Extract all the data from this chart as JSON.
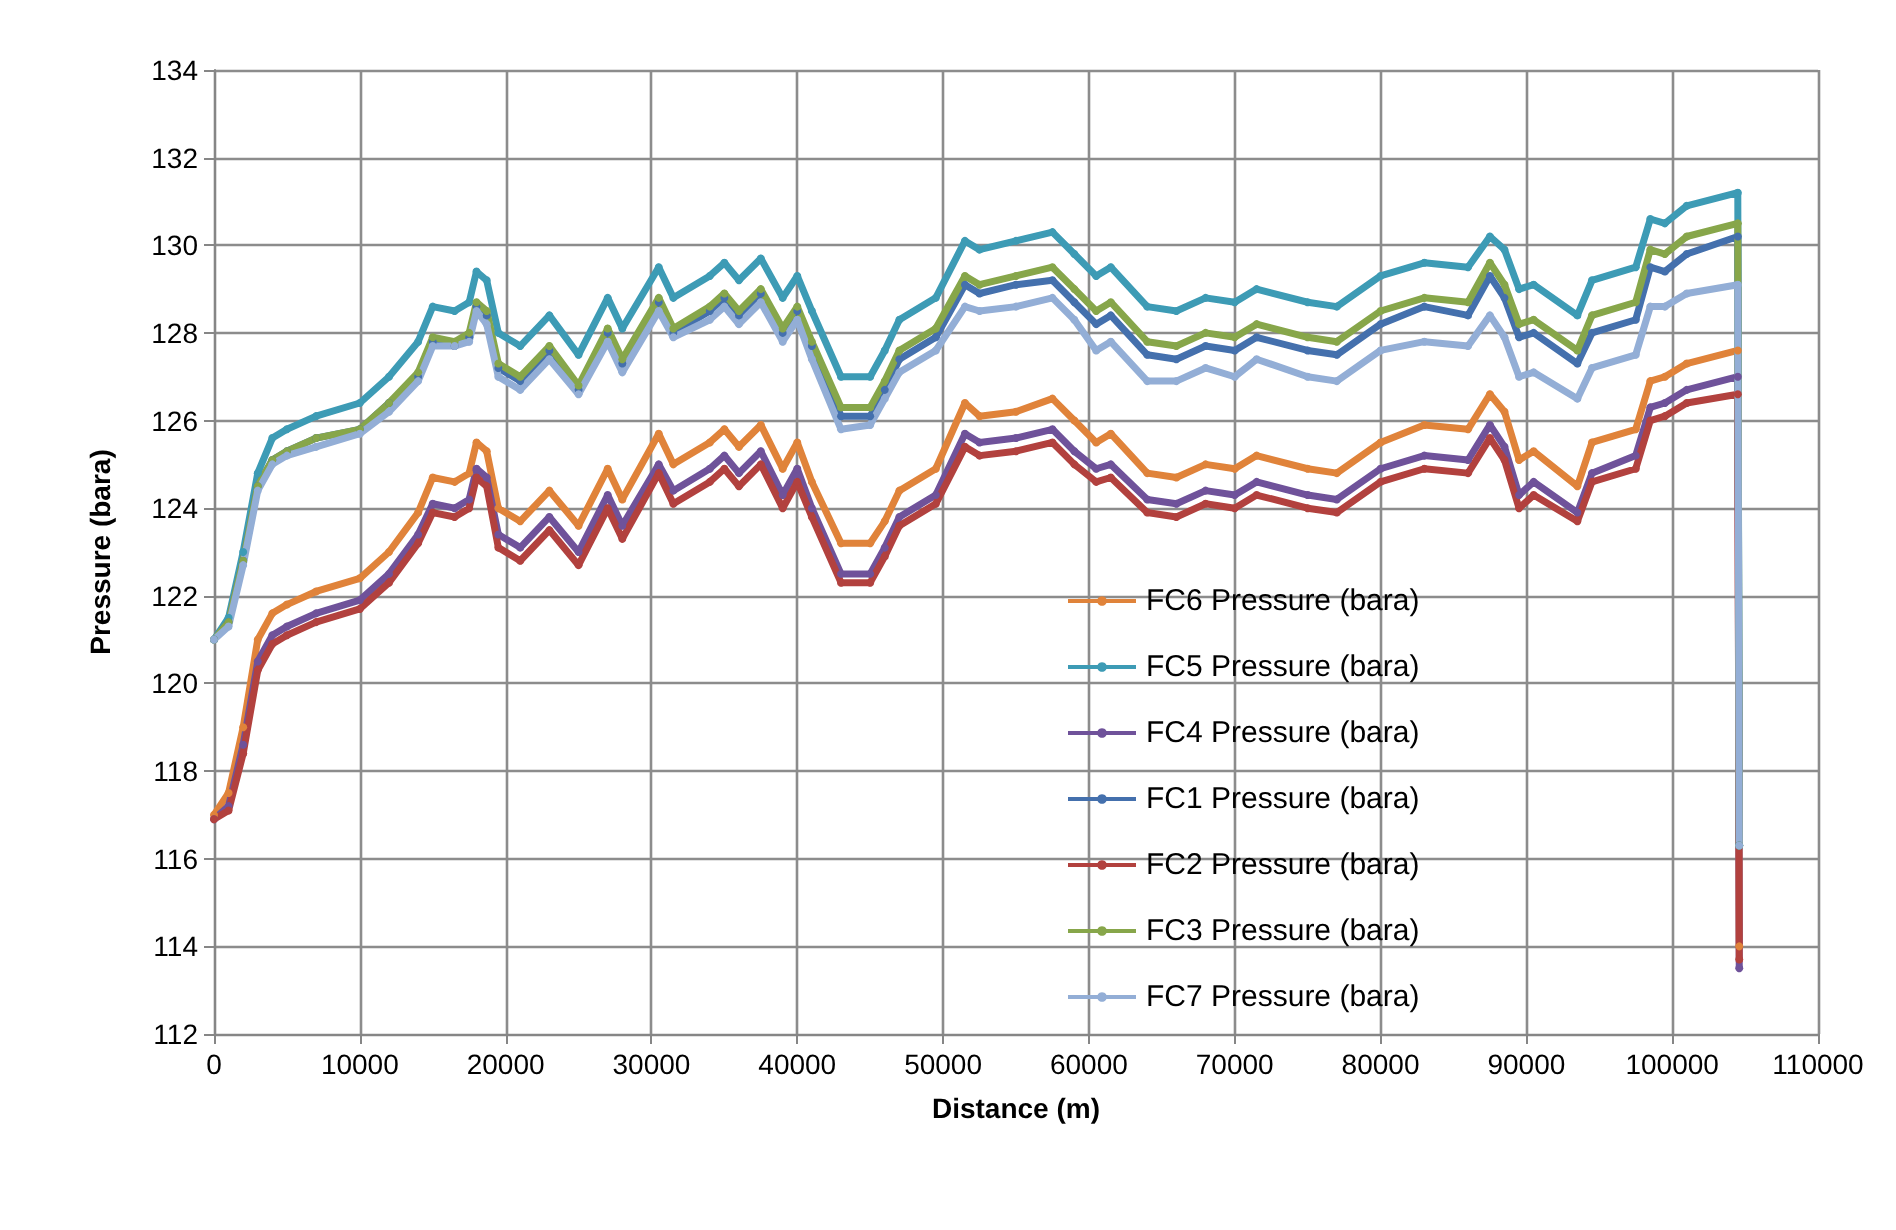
{
  "chart_data": {
    "type": "line",
    "xlabel": "Distance (m)",
    "ylabel": "Pressure (bara)",
    "x": [
      0,
      1000,
      2000,
      3000,
      4000,
      5000,
      7000,
      10000,
      12000,
      14000,
      15000,
      16500,
      17500,
      18000,
      18700,
      19500,
      21000,
      23000,
      25000,
      27000,
      28000,
      30500,
      31500,
      34000,
      35000,
      36000,
      37500,
      39000,
      40000,
      41000,
      43000,
      45000,
      46000,
      47000,
      49500,
      51500,
      52500,
      55000,
      57500,
      59000,
      60500,
      61500,
      64000,
      66000,
      68000,
      70000,
      71500,
      75000,
      77000,
      80000,
      83000,
      86000,
      87500,
      88500,
      89500,
      90500,
      93500,
      94500,
      97500,
      98500,
      99500,
      101000,
      104500,
      104600
    ],
    "xlim": [
      0,
      110000
    ],
    "xticks": [
      0,
      10000,
      20000,
      30000,
      40000,
      50000,
      60000,
      70000,
      80000,
      90000,
      100000,
      110000
    ],
    "ylim": [
      112,
      134
    ],
    "yticks": [
      112,
      114,
      116,
      118,
      120,
      122,
      124,
      126,
      128,
      130,
      132,
      134
    ],
    "grid": true,
    "legend": "right",
    "marker": "circle",
    "line_style": "solid",
    "series": [
      {
        "name": "FC6 Pressure (bara)",
        "color": "#e0833a",
        "values": [
          117.0,
          117.5,
          119.0,
          121.0,
          121.6,
          121.8,
          122.1,
          122.4,
          123.0,
          123.9,
          124.7,
          124.6,
          124.8,
          125.5,
          125.3,
          124.0,
          123.7,
          124.4,
          123.6,
          124.9,
          124.2,
          125.7,
          125.0,
          125.5,
          125.8,
          125.4,
          125.9,
          124.9,
          125.5,
          124.6,
          123.2,
          123.2,
          123.7,
          124.4,
          124.9,
          126.4,
          126.1,
          126.2,
          126.5,
          126.0,
          125.5,
          125.7,
          124.8,
          124.7,
          125.0,
          124.9,
          125.2,
          124.9,
          124.8,
          125.5,
          125.9,
          125.8,
          126.6,
          126.2,
          125.1,
          125.3,
          124.5,
          125.5,
          125.8,
          126.9,
          127.0,
          127.3,
          127.6,
          114.0
        ]
      },
      {
        "name": "FC5 Pressure (bara)",
        "color": "#3d9bb5",
        "values": [
          121.0,
          121.5,
          123.0,
          124.8,
          125.6,
          125.8,
          126.1,
          126.4,
          127.0,
          127.8,
          128.6,
          128.5,
          128.7,
          129.4,
          129.2,
          128.0,
          127.7,
          128.4,
          127.5,
          128.8,
          128.1,
          129.5,
          128.8,
          129.3,
          129.6,
          129.2,
          129.7,
          128.8,
          129.3,
          128.5,
          127.0,
          127.0,
          127.6,
          128.3,
          128.8,
          130.1,
          129.9,
          130.1,
          130.3,
          129.8,
          129.3,
          129.5,
          128.6,
          128.5,
          128.8,
          128.7,
          129.0,
          128.7,
          128.6,
          129.3,
          129.6,
          129.5,
          130.2,
          129.9,
          129.0,
          129.1,
          128.4,
          129.2,
          129.5,
          130.6,
          130.5,
          130.9,
          131.2,
          116.3
        ]
      },
      {
        "name": "FC4 Pressure (bara)",
        "color": "#6f529a",
        "values": [
          116.9,
          117.2,
          118.6,
          120.5,
          121.1,
          121.3,
          121.6,
          121.9,
          122.5,
          123.4,
          124.1,
          124.0,
          124.2,
          124.9,
          124.7,
          123.4,
          123.1,
          123.8,
          123.0,
          124.3,
          123.6,
          125.0,
          124.4,
          124.9,
          125.2,
          124.8,
          125.3,
          124.3,
          124.9,
          124.0,
          122.5,
          122.5,
          123.1,
          123.8,
          124.3,
          125.7,
          125.5,
          125.6,
          125.8,
          125.3,
          124.9,
          125.0,
          124.2,
          124.1,
          124.4,
          124.3,
          124.6,
          124.3,
          124.2,
          124.9,
          125.2,
          125.1,
          125.9,
          125.4,
          124.3,
          124.6,
          123.9,
          124.8,
          125.2,
          126.3,
          126.4,
          126.7,
          127.0,
          113.5
        ]
      },
      {
        "name": "FC1 Pressure (bara)",
        "color": "#4470ad",
        "values": [
          121.0,
          121.4,
          122.8,
          124.5,
          125.1,
          125.3,
          125.6,
          125.8,
          126.4,
          127.0,
          127.8,
          127.7,
          127.9,
          128.6,
          128.4,
          127.2,
          126.9,
          127.6,
          126.7,
          128.0,
          127.3,
          128.7,
          128.0,
          128.5,
          128.8,
          128.4,
          128.9,
          128.0,
          128.5,
          127.7,
          126.1,
          126.1,
          126.7,
          127.4,
          127.9,
          129.1,
          128.9,
          129.1,
          129.2,
          128.7,
          128.2,
          128.4,
          127.5,
          127.4,
          127.7,
          127.6,
          127.9,
          127.6,
          127.5,
          128.2,
          128.6,
          128.4,
          129.3,
          128.8,
          127.9,
          128.0,
          127.3,
          128.0,
          128.3,
          129.5,
          129.4,
          129.8,
          130.2,
          116.3
        ]
      },
      {
        "name": "FC2 Pressure (bara)",
        "color": "#b2413e",
        "values": [
          116.9,
          117.1,
          118.4,
          120.3,
          120.9,
          121.1,
          121.4,
          121.7,
          122.3,
          123.2,
          123.9,
          123.8,
          124.0,
          124.7,
          124.5,
          123.1,
          122.8,
          123.5,
          122.7,
          124.0,
          123.3,
          124.8,
          124.1,
          124.6,
          124.9,
          124.5,
          125.0,
          124.0,
          124.6,
          123.8,
          122.3,
          122.3,
          122.9,
          123.6,
          124.1,
          125.4,
          125.2,
          125.3,
          125.5,
          125.0,
          124.6,
          124.7,
          123.9,
          123.8,
          124.1,
          124.0,
          124.3,
          124.0,
          123.9,
          124.6,
          124.9,
          124.8,
          125.6,
          125.1,
          124.0,
          124.3,
          123.7,
          124.6,
          124.9,
          126.0,
          126.1,
          126.4,
          126.6,
          113.7
        ]
      },
      {
        "name": "FC3 Pressure (bara)",
        "color": "#87a64a",
        "values": [
          121.0,
          121.4,
          122.8,
          124.5,
          125.1,
          125.3,
          125.6,
          125.8,
          126.4,
          127.1,
          127.9,
          127.8,
          128.0,
          128.7,
          128.5,
          127.3,
          127.0,
          127.7,
          126.8,
          128.1,
          127.4,
          128.8,
          128.1,
          128.6,
          128.9,
          128.5,
          129.0,
          128.1,
          128.6,
          127.8,
          126.3,
          126.3,
          126.9,
          127.6,
          128.1,
          129.3,
          129.1,
          129.3,
          129.5,
          129.0,
          128.5,
          128.7,
          127.8,
          127.7,
          128.0,
          127.9,
          128.2,
          127.9,
          127.8,
          128.5,
          128.8,
          128.7,
          129.6,
          129.1,
          128.2,
          128.3,
          127.6,
          128.4,
          128.7,
          129.9,
          129.8,
          130.2,
          130.5,
          116.3
        ]
      },
      {
        "name": "FC7 Pressure (bara)",
        "color": "#93aed6",
        "values": [
          121.0,
          121.3,
          122.7,
          124.4,
          125.0,
          125.2,
          125.4,
          125.7,
          126.2,
          126.9,
          127.7,
          127.7,
          127.8,
          128.5,
          128.2,
          127.0,
          126.7,
          127.4,
          126.6,
          127.8,
          127.1,
          128.5,
          127.9,
          128.3,
          128.6,
          128.2,
          128.7,
          127.8,
          128.3,
          127.4,
          125.8,
          125.9,
          126.5,
          127.1,
          127.6,
          128.6,
          128.5,
          128.6,
          128.8,
          128.3,
          127.6,
          127.8,
          126.9,
          126.9,
          127.2,
          127.0,
          127.4,
          127.0,
          126.9,
          127.6,
          127.8,
          127.7,
          128.4,
          127.9,
          127.0,
          127.1,
          126.5,
          127.2,
          127.5,
          128.6,
          128.6,
          128.9,
          129.1,
          116.3
        ]
      }
    ]
  }
}
